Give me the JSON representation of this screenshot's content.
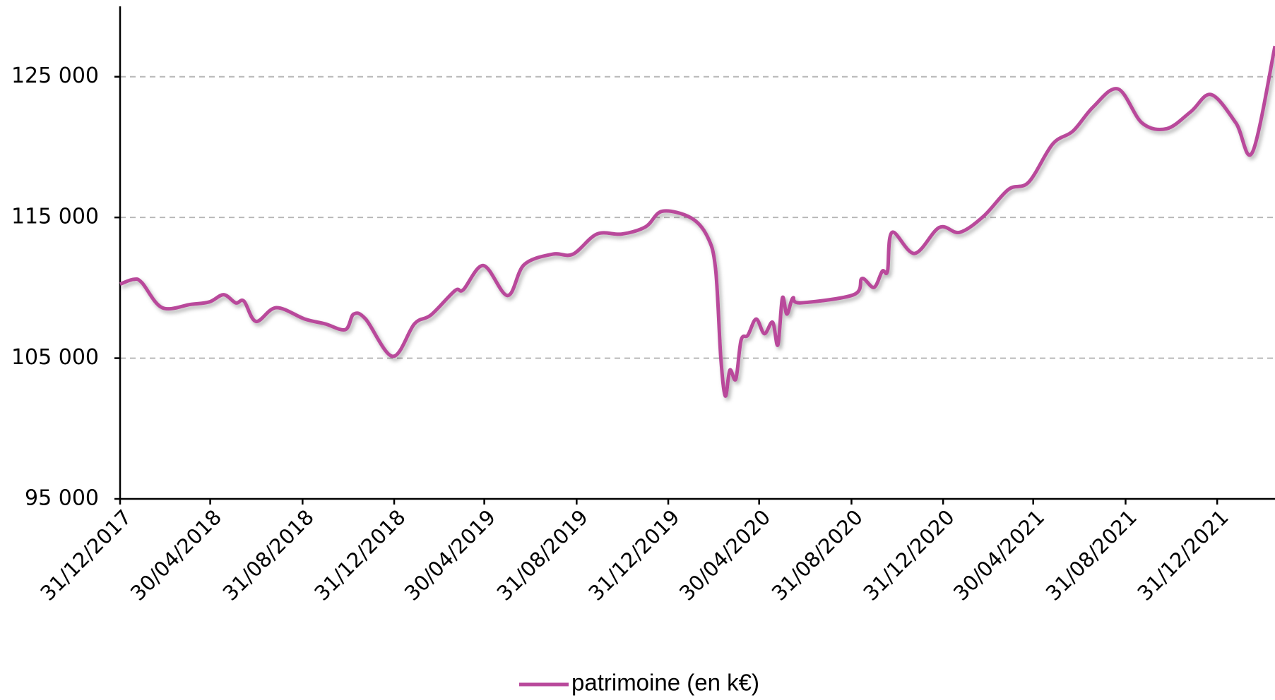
{
  "chart_data": {
    "type": "line",
    "x": [
      "2017-12-31",
      "2018-01-18",
      "2018-01-29",
      "2018-02-25",
      "2018-04-04",
      "2018-04-29",
      "2018-05-18",
      "2018-06-03",
      "2018-06-14",
      "2018-06-30",
      "2018-07-27",
      "2018-09-03",
      "2018-09-30",
      "2018-10-27",
      "2018-11-07",
      "2018-11-23",
      "2018-12-29",
      "2019-01-27",
      "2019-02-18",
      "2019-03-22",
      "2019-04-02",
      "2019-04-29",
      "2019-05-31",
      "2019-06-22",
      "2019-07-30",
      "2019-08-26",
      "2019-09-27",
      "2019-10-30",
      "2019-12-01",
      "2019-12-23",
      "2020-01-30",
      "2020-02-21",
      "2020-03-03",
      "2020-03-10",
      "2020-03-16",
      "2020-03-22",
      "2020-03-30",
      "2020-04-06",
      "2020-04-15",
      "2020-04-26",
      "2020-05-07",
      "2020-05-18",
      "2020-05-25",
      "2020-05-31",
      "2020-06-06",
      "2020-06-14",
      "2020-06-24",
      "2020-09-03",
      "2020-09-14",
      "2020-09-30",
      "2020-10-11",
      "2020-10-18",
      "2020-10-24",
      "2020-11-23",
      "2020-12-26",
      "2021-01-22",
      "2021-02-23",
      "2021-03-28",
      "2021-04-24",
      "2021-05-26",
      "2021-06-22",
      "2021-07-19",
      "2021-08-21",
      "2021-09-22",
      "2021-10-25",
      "2021-11-26",
      "2021-12-23",
      "2022-01-25",
      "2022-02-16",
      "2022-03-18"
    ],
    "series": [
      {
        "name": "patrimoine (en k€)",
        "color": "#b9499b",
        "values": [
          110260,
          110600,
          110370,
          108590,
          108820,
          109000,
          109510,
          108930,
          109050,
          107610,
          108590,
          107780,
          107440,
          107030,
          108130,
          107780,
          105130,
          107440,
          108070,
          109800,
          109860,
          111580,
          109450,
          111640,
          112390,
          112390,
          113820,
          113820,
          114340,
          115440,
          114980,
          113650,
          111350,
          105020,
          102310,
          104150,
          103520,
          106280,
          106630,
          107780,
          106740,
          107550,
          105940,
          109280,
          108130,
          109280,
          108930,
          109510,
          110660,
          110030,
          111180,
          111180,
          113940,
          112440,
          114290,
          113940,
          115090,
          116990,
          117510,
          120220,
          121140,
          122860,
          124130,
          121710,
          121310,
          122520,
          123730,
          121710,
          119640,
          127180
        ]
      }
    ],
    "xlim": [
      "2017-12-31",
      "2022-03-18"
    ],
    "xticks": [
      {
        "value": "2017-12-31",
        "label": "31/12/2017"
      },
      {
        "value": "2018-04-30",
        "label": "30/04/2018"
      },
      {
        "value": "2018-08-31",
        "label": "31/08/2018"
      },
      {
        "value": "2018-12-31",
        "label": "31/12/2018"
      },
      {
        "value": "2019-04-30",
        "label": "30/04/2019"
      },
      {
        "value": "2019-08-31",
        "label": "31/08/2019"
      },
      {
        "value": "2019-12-31",
        "label": "31/12/2019"
      },
      {
        "value": "2020-04-30",
        "label": "30/04/2020"
      },
      {
        "value": "2020-08-31",
        "label": "31/08/2020"
      },
      {
        "value": "2020-12-31",
        "label": "31/12/2020"
      },
      {
        "value": "2021-04-30",
        "label": "30/04/2021"
      },
      {
        "value": "2021-08-31",
        "label": "31/08/2021"
      },
      {
        "value": "2021-12-31",
        "label": "31/12/2021"
      }
    ],
    "ylim": [
      95000,
      130000
    ],
    "yticks": [
      {
        "value": 95000,
        "label": "95 000"
      },
      {
        "value": 105000,
        "label": "105 000"
      },
      {
        "value": 115000,
        "label": "115 000"
      },
      {
        "value": 125000,
        "label": "125 000"
      }
    ],
    "grid": true,
    "legend": "bottom"
  }
}
